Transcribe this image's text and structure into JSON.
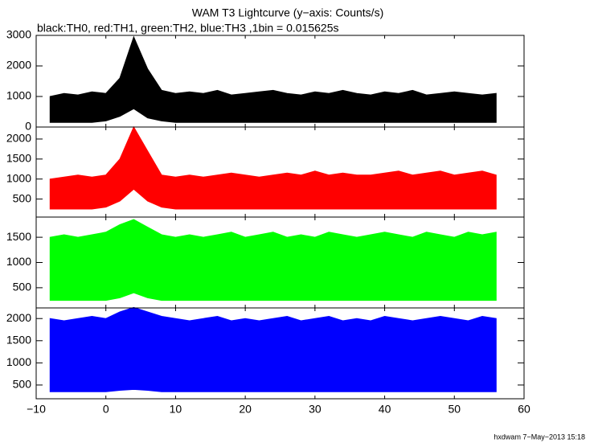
{
  "title": "WAM T3 Lightcurve (y−axis: Counts/s)",
  "subtitle": "black:TH0, red:TH1, green:TH2, blue:TH3 ,1bin = 0.015625s",
  "footer": "hxdwam  7−May−2013 15:18",
  "chart_data": [
    {
      "type": "band",
      "color": "#000000",
      "x": [
        -8,
        -6,
        -4,
        -2,
        0,
        2,
        4,
        6,
        8,
        10,
        12,
        14,
        16,
        18,
        20,
        22,
        24,
        26,
        28,
        30,
        32,
        34,
        36,
        38,
        40,
        42,
        44,
        46,
        48,
        50,
        52,
        54,
        56
      ],
      "high": [
        1000,
        1100,
        1050,
        1150,
        1100,
        1600,
        2950,
        1900,
        1200,
        1100,
        1150,
        1100,
        1200,
        1050,
        1100,
        1150,
        1200,
        1100,
        1050,
        1150,
        1100,
        1200,
        1100,
        1050,
        1150,
        1100,
        1200,
        1050,
        1100,
        1150,
        1100,
        1050,
        1100
      ],
      "low": [
        150,
        150,
        150,
        150,
        200,
        350,
        600,
        300,
        200,
        150,
        150,
        150,
        150,
        150,
        150,
        150,
        150,
        150,
        150,
        150,
        150,
        150,
        150,
        150,
        150,
        150,
        150,
        150,
        150,
        150,
        150,
        150,
        150
      ],
      "ylim": [
        0,
        3000
      ],
      "yticks": [
        0,
        1000,
        2000,
        3000
      ]
    },
    {
      "type": "band",
      "color": "#ff0000",
      "x": [
        -8,
        -6,
        -4,
        -2,
        0,
        2,
        4,
        6,
        8,
        10,
        12,
        14,
        16,
        18,
        20,
        22,
        24,
        26,
        28,
        30,
        32,
        34,
        36,
        38,
        40,
        42,
        44,
        46,
        48,
        50,
        52,
        54,
        56
      ],
      "high": [
        1000,
        1050,
        1100,
        1050,
        1100,
        1500,
        2300,
        1700,
        1100,
        1050,
        1100,
        1050,
        1100,
        1150,
        1100,
        1050,
        1100,
        1150,
        1100,
        1200,
        1100,
        1150,
        1100,
        1100,
        1150,
        1200,
        1100,
        1150,
        1200,
        1100,
        1150,
        1200,
        1100
      ],
      "low": [
        250,
        250,
        250,
        250,
        300,
        450,
        750,
        450,
        300,
        250,
        250,
        250,
        250,
        250,
        250,
        250,
        250,
        250,
        250,
        250,
        250,
        250,
        250,
        250,
        250,
        250,
        250,
        250,
        250,
        250,
        250,
        250,
        250
      ],
      "ylim": [
        50,
        2300
      ],
      "yticks": [
        500,
        1000,
        1500,
        2000
      ]
    },
    {
      "type": "band",
      "color": "#00ff00",
      "x": [
        -8,
        -6,
        -4,
        -2,
        0,
        2,
        4,
        6,
        8,
        10,
        12,
        14,
        16,
        18,
        20,
        22,
        24,
        26,
        28,
        30,
        32,
        34,
        36,
        38,
        40,
        42,
        44,
        46,
        48,
        50,
        52,
        54,
        56
      ],
      "high": [
        1500,
        1550,
        1500,
        1550,
        1600,
        1750,
        1850,
        1700,
        1550,
        1500,
        1550,
        1500,
        1550,
        1600,
        1500,
        1550,
        1600,
        1500,
        1550,
        1500,
        1600,
        1550,
        1500,
        1550,
        1600,
        1550,
        1500,
        1600,
        1550,
        1500,
        1600,
        1550,
        1600
      ],
      "low": [
        250,
        250,
        250,
        250,
        250,
        300,
        400,
        300,
        250,
        250,
        250,
        250,
        250,
        250,
        250,
        250,
        250,
        250,
        250,
        250,
        250,
        250,
        250,
        250,
        250,
        250,
        250,
        250,
        250,
        250,
        250,
        250,
        250
      ],
      "ylim": [
        100,
        1900
      ],
      "yticks": [
        500,
        1000,
        1500
      ]
    },
    {
      "type": "band",
      "color": "#0000ff",
      "x": [
        -8,
        -6,
        -4,
        -2,
        0,
        2,
        4,
        6,
        8,
        10,
        12,
        14,
        16,
        18,
        20,
        22,
        24,
        26,
        28,
        30,
        32,
        34,
        36,
        38,
        40,
        42,
        44,
        46,
        48,
        50,
        52,
        54,
        56
      ],
      "high": [
        2000,
        1950,
        2000,
        2050,
        2000,
        2150,
        2250,
        2150,
        2050,
        2000,
        1950,
        2000,
        2050,
        1950,
        2000,
        1950,
        2000,
        2050,
        1950,
        2000,
        2050,
        1950,
        2000,
        1950,
        2050,
        2000,
        1950,
        2000,
        2050,
        2000,
        1950,
        2050,
        2000
      ],
      "low": [
        350,
        350,
        350,
        350,
        350,
        380,
        400,
        380,
        350,
        350,
        350,
        350,
        350,
        350,
        350,
        350,
        350,
        350,
        350,
        350,
        350,
        350,
        350,
        350,
        350,
        350,
        350,
        350,
        350,
        350,
        350,
        350,
        350
      ],
      "ylim": [
        190,
        2240
      ],
      "yticks": [
        500,
        1000,
        1500,
        2000
      ],
      "xlim": [
        -10,
        60
      ],
      "xticks": [
        {
          "value": -10,
          "label": "−10"
        },
        0,
        10,
        20,
        30,
        40,
        50,
        60
      ]
    }
  ]
}
